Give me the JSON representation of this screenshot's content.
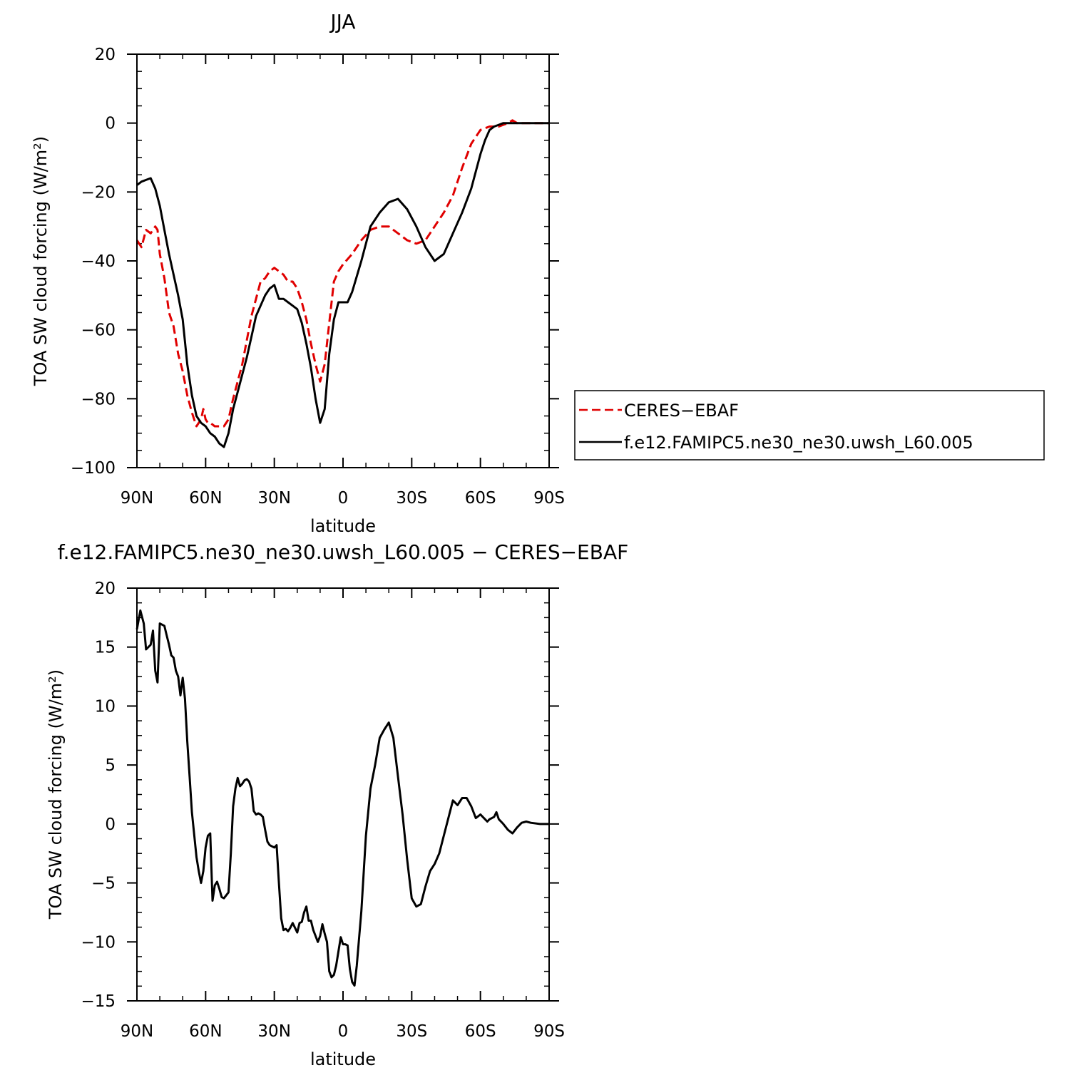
{
  "chart_data": [
    {
      "type": "line",
      "title": "JJA",
      "xlabel": "latitude",
      "ylabel": "TOA SW cloud forcing (W/m²)",
      "xlim": [
        90,
        -90
      ],
      "ylim": [
        -100,
        20
      ],
      "xticks": [
        90,
        60,
        30,
        0,
        -30,
        -60,
        -90
      ],
      "xtick_labels": [
        "90N",
        "60N",
        "30N",
        "0",
        "30S",
        "60S",
        "90S"
      ],
      "yticks": [
        20,
        0,
        -20,
        -40,
        -60,
        -80,
        -100
      ],
      "ytick_labels": [
        "20",
        "0",
        "−20",
        "−40",
        "−60",
        "−80",
        "−100"
      ],
      "legend": "right",
      "series": [
        {
          "name": "CERES−EBAF",
          "color": "#e00000",
          "dash": true,
          "x": [
            90,
            88,
            86,
            84,
            82,
            81,
            80,
            78,
            76,
            74,
            72,
            70,
            68,
            66,
            64,
            62,
            61,
            60,
            59,
            58,
            56,
            54,
            52,
            50,
            48,
            46,
            44,
            42,
            40,
            38,
            36,
            34,
            32,
            30,
            28,
            26,
            24,
            22,
            20,
            18,
            16,
            14,
            12,
            10,
            8,
            6,
            4,
            2,
            0,
            -4,
            -8,
            -12,
            -16,
            -20,
            -24,
            -28,
            -32,
            -36,
            -40,
            -44,
            -48,
            -52,
            -56,
            -60,
            -64,
            -68,
            -72,
            -74,
            -76,
            -78,
            -80,
            -84,
            -88,
            -90
          ],
          "y": [
            -34,
            -36,
            -31,
            -32,
            -30,
            -31,
            -38,
            -45,
            -55,
            -59,
            -67,
            -72,
            -79,
            -84,
            -88,
            -86,
            -83,
            -86,
            -87,
            -87,
            -88,
            -88,
            -88,
            -86,
            -80,
            -75,
            -70,
            -63,
            -56,
            -51,
            -46,
            -45,
            -43,
            -42,
            -43,
            -44,
            -46,
            -46,
            -48,
            -52,
            -57,
            -64,
            -70,
            -75,
            -70,
            -58,
            -46,
            -43,
            -41,
            -38,
            -34,
            -31,
            -30,
            -30,
            -32,
            -34,
            -35,
            -34,
            -30,
            -26,
            -21,
            -13,
            -6,
            -2,
            -1,
            -1,
            0,
            0.8,
            0,
            0,
            0,
            0,
            0,
            0
          ]
        },
        {
          "name": "f.e12.FAMIPC5.ne30_ne30.uwsh_L60.005",
          "color": "#000000",
          "dash": false,
          "x": [
            90,
            88,
            86,
            84,
            82,
            80,
            78,
            76,
            74,
            72,
            70,
            68,
            66,
            64,
            62,
            60,
            58,
            56,
            54,
            52,
            50,
            48,
            46,
            44,
            42,
            40,
            38,
            36,
            34,
            32,
            30,
            28,
            26,
            24,
            22,
            20,
            18,
            16,
            14,
            12,
            10,
            8,
            6,
            4,
            2,
            0,
            -2,
            -4,
            -8,
            -12,
            -16,
            -20,
            -24,
            -28,
            -32,
            -36,
            -40,
            -44,
            -48,
            -52,
            -56,
            -60,
            -62,
            -64,
            -66,
            -68,
            -70,
            -74,
            -78,
            -82,
            -86,
            -90
          ],
          "y": [
            -18,
            -17,
            -16.5,
            -16,
            -19,
            -24,
            -31,
            -38,
            -44,
            -50,
            -57,
            -70,
            -79,
            -85,
            -87,
            -88,
            -90,
            -91,
            -93,
            -94,
            -90,
            -83,
            -78,
            -73,
            -68,
            -62,
            -56,
            -53,
            -50,
            -48,
            -47,
            -51,
            -51,
            -52,
            -53,
            -54,
            -58,
            -64,
            -71,
            -80,
            -87,
            -83,
            -67,
            -57,
            -52,
            -52,
            -52,
            -49,
            -40,
            -30,
            -26,
            -23,
            -22,
            -25,
            -30,
            -36,
            -40,
            -38,
            -32,
            -26,
            -19,
            -9,
            -5,
            -2,
            -1,
            -0.5,
            0,
            0,
            0,
            0,
            0,
            0
          ]
        }
      ]
    },
    {
      "type": "line",
      "title": "f.e12.FAMIPC5.ne30_ne30.uwsh_L60.005 − CERES−EBAF",
      "xlabel": "latitude",
      "ylabel": "TOA SW cloud forcing (W/m²)",
      "xlim": [
        90,
        -90
      ],
      "ylim": [
        -15,
        20
      ],
      "xticks": [
        90,
        60,
        30,
        0,
        -30,
        -60,
        -90
      ],
      "xtick_labels": [
        "90N",
        "60N",
        "30N",
        "0",
        "30S",
        "60S",
        "90S"
      ],
      "yticks": [
        20,
        15,
        10,
        5,
        0,
        -5,
        -10,
        -15
      ],
      "ytick_labels": [
        "20",
        "15",
        "10",
        "5",
        "0",
        "−5",
        "−10",
        "−15"
      ],
      "series": [
        {
          "color": "#000000",
          "x": [
            90,
            88.5,
            87,
            86,
            84,
            83,
            82,
            81,
            80,
            78,
            77,
            76,
            75,
            74,
            73,
            72,
            71,
            70,
            69,
            68,
            67,
            66,
            64,
            63,
            62,
            61,
            60,
            59,
            58,
            57,
            56,
            55,
            54,
            53,
            52,
            50,
            49,
            48,
            47,
            46,
            45,
            44,
            43,
            42,
            41,
            40,
            39,
            38,
            37,
            36,
            35,
            34,
            33,
            32,
            31,
            30,
            29,
            28,
            27,
            26,
            25,
            24,
            23,
            22,
            21,
            20,
            19,
            18,
            17,
            16,
            15,
            14,
            13,
            12,
            11,
            10,
            9,
            8,
            7,
            6,
            5,
            4,
            3,
            2,
            1,
            0,
            -1,
            -2,
            -3,
            -4,
            -5,
            -6,
            -8,
            -10,
            -12,
            -14,
            -16,
            -18,
            -20,
            -22,
            -24,
            -26,
            -28,
            -30,
            -32,
            -34,
            -36,
            -38,
            -40,
            -42,
            -44,
            -46,
            -48,
            -50,
            -52,
            -54,
            -56,
            -58,
            -60,
            -62,
            -63,
            -64,
            -65,
            -66,
            -67,
            -68,
            -70,
            -72,
            -74,
            -76,
            -78,
            -80,
            -82,
            -86,
            -90
          ],
          "y": [
            16.5,
            18.1,
            17,
            14.8,
            15.2,
            16.4,
            13,
            12,
            17,
            16.8,
            16,
            15.2,
            14.3,
            14.1,
            13,
            12.5,
            10.9,
            12.4,
            10.6,
            7,
            4,
            1,
            -2.8,
            -4,
            -5,
            -4,
            -2,
            -1,
            -0.8,
            -6.5,
            -5.2,
            -4.9,
            -5.5,
            -6.2,
            -6.3,
            -5.8,
            -2.5,
            1.5,
            3,
            3.9,
            3.2,
            3.4,
            3.7,
            3.8,
            3.6,
            3,
            1.1,
            0.8,
            0.9,
            0.8,
            0.6,
            -0.5,
            -1.5,
            -1.8,
            -1.9,
            -2,
            -1.8,
            -5,
            -8,
            -9,
            -8.9,
            -9.1,
            -8.8,
            -8.4,
            -8.8,
            -9.2,
            -8.4,
            -8.3,
            -7.5,
            -7,
            -8.2,
            -8.2,
            -9,
            -9.5,
            -10,
            -9.5,
            -8.5,
            -9.3,
            -10,
            -12.5,
            -13,
            -12.8,
            -12,
            -10.8,
            -9.6,
            -10.2,
            -10.2,
            -10.3,
            -12.3,
            -13.4,
            -13.7,
            -12,
            -7.4,
            -1,
            3,
            5,
            7.3,
            8,
            8.6,
            7.3,
            4,
            0.8,
            -3,
            -6.3,
            -7,
            -6.8,
            -5.3,
            -4,
            -3.4,
            -2.5,
            -1,
            0.5,
            2,
            1.6,
            2.2,
            2.2,
            1.5,
            0.5,
            0.8,
            0.4,
            0.2,
            0.4,
            0.5,
            0.6,
            1,
            0.4,
            0,
            -0.5,
            -0.8,
            -0.3,
            0.1,
            0.2,
            0.1,
            0,
            0
          ]
        }
      ]
    }
  ]
}
